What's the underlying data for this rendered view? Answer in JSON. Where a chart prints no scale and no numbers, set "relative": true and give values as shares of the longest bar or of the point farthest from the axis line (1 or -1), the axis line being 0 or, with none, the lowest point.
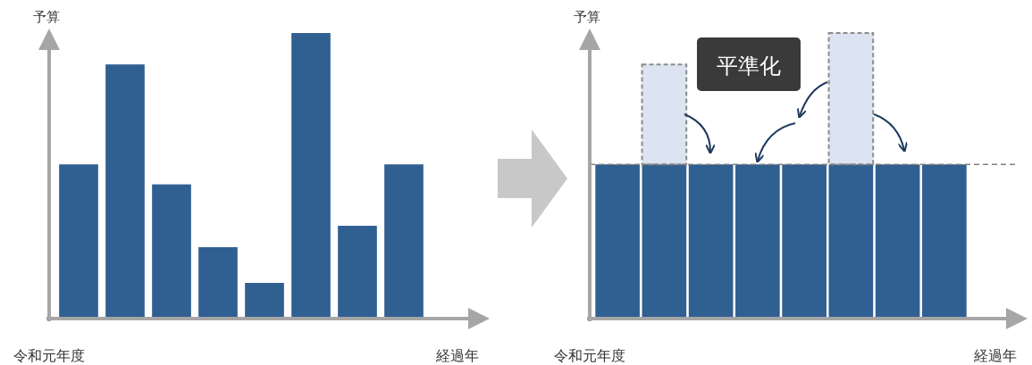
{
  "chart_data": [
    {
      "type": "bar",
      "relative": true,
      "categories": [
        null,
        null,
        null,
        null,
        null,
        null,
        null,
        null
      ],
      "xlabel": "経過年",
      "ylabel": "予算",
      "annotations": [
        "令和元年度"
      ],
      "series": [
        {
          "color": "#305f91",
          "values": [
            0.54,
            0.89,
            0.47,
            0.25,
            0.125,
            1,
            0.325,
            0.54
          ]
        }
      ]
    },
    {
      "type": "bar",
      "relative": true,
      "stacked": true,
      "categories": [
        null,
        null,
        null,
        null,
        null,
        null,
        null,
        null
      ],
      "xlabel": "経過年",
      "ylabel": "予算",
      "annotations": [
        "令和元年度",
        "平準化"
      ],
      "series": [
        {
          "color": "#305f91",
          "values": [
            0.54,
            0.54,
            0.54,
            0.54,
            0.54,
            0.54,
            0.54,
            0.54
          ]
        },
        {
          "color": "#dce4f2",
          "values": [
            null,
            0.35,
            null,
            null,
            null,
            0.46,
            null,
            null
          ]
        }
      ],
      "ref_lines": [
        {
          "axis": "y",
          "value": 0.54,
          "color": "#7f7f7f",
          "line_style": "dashed"
        }
      ]
    }
  ]
}
